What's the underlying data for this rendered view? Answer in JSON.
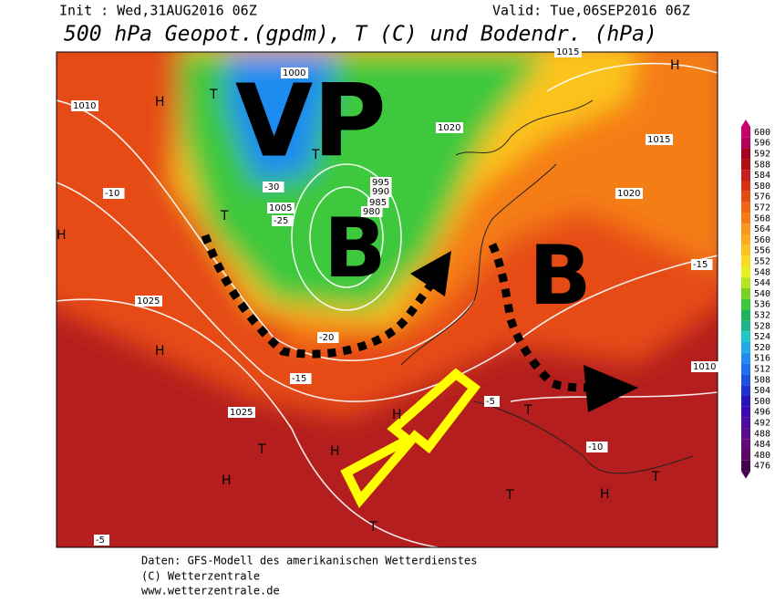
{
  "header": {
    "init": "Init : Wed,31AUG2016 06Z",
    "valid": "Valid: Tue,06SEP2016 06Z",
    "title": "500 hPa Geopot.(gpdm), T (C) und Bodendr. (hPa)"
  },
  "colorbar": {
    "ticks": [
      600,
      596,
      592,
      588,
      584,
      580,
      576,
      572,
      568,
      564,
      560,
      556,
      552,
      548,
      544,
      540,
      536,
      532,
      528,
      524,
      520,
      516,
      512,
      508,
      504,
      500,
      496,
      492,
      488,
      484,
      480,
      476
    ],
    "colors": [
      "#c8006e",
      "#b4005a",
      "#a8001e",
      "#b40f0f",
      "#c81e1e",
      "#dc3214",
      "#e64b14",
      "#f06414",
      "#f57d14",
      "#fa961e",
      "#fcaa1e",
      "#fcc31e",
      "#fadc1e",
      "#e6f01e",
      "#b4e61e",
      "#78d21e",
      "#3cc83c",
      "#1eb45a",
      "#1eb48c",
      "#1ec8c8",
      "#1eaae6",
      "#1e8cf0",
      "#1e6ef0",
      "#1e50e6",
      "#1e32d2",
      "#2814be",
      "#3c0ab4",
      "#500aa0",
      "#5a0a8c",
      "#640a78",
      "#5a0a64",
      "#460050"
    ]
  },
  "annotations": {
    "vp": "VP",
    "b1": "B",
    "b2": "B"
  },
  "map_labels": [
    "H",
    "H",
    "H",
    "H",
    "H",
    "H",
    "H",
    "H",
    "T",
    "T",
    "T",
    "T",
    "T",
    "T",
    "T",
    "T",
    "1010",
    "1010",
    "1015",
    "1015",
    "1020",
    "1020",
    "1025",
    "1025",
    "1000",
    "1005",
    "995",
    "990",
    "985",
    "980",
    "-10",
    "-10",
    "-15",
    "-15",
    "-20",
    "-25",
    "-30",
    "-5",
    "-5"
  ],
  "footer": [
    "Daten: GFS-Modell des amerikanischen Wetterdienstes",
    "(C) Wetterzentrale",
    "www.wetterzentrale.de"
  ]
}
